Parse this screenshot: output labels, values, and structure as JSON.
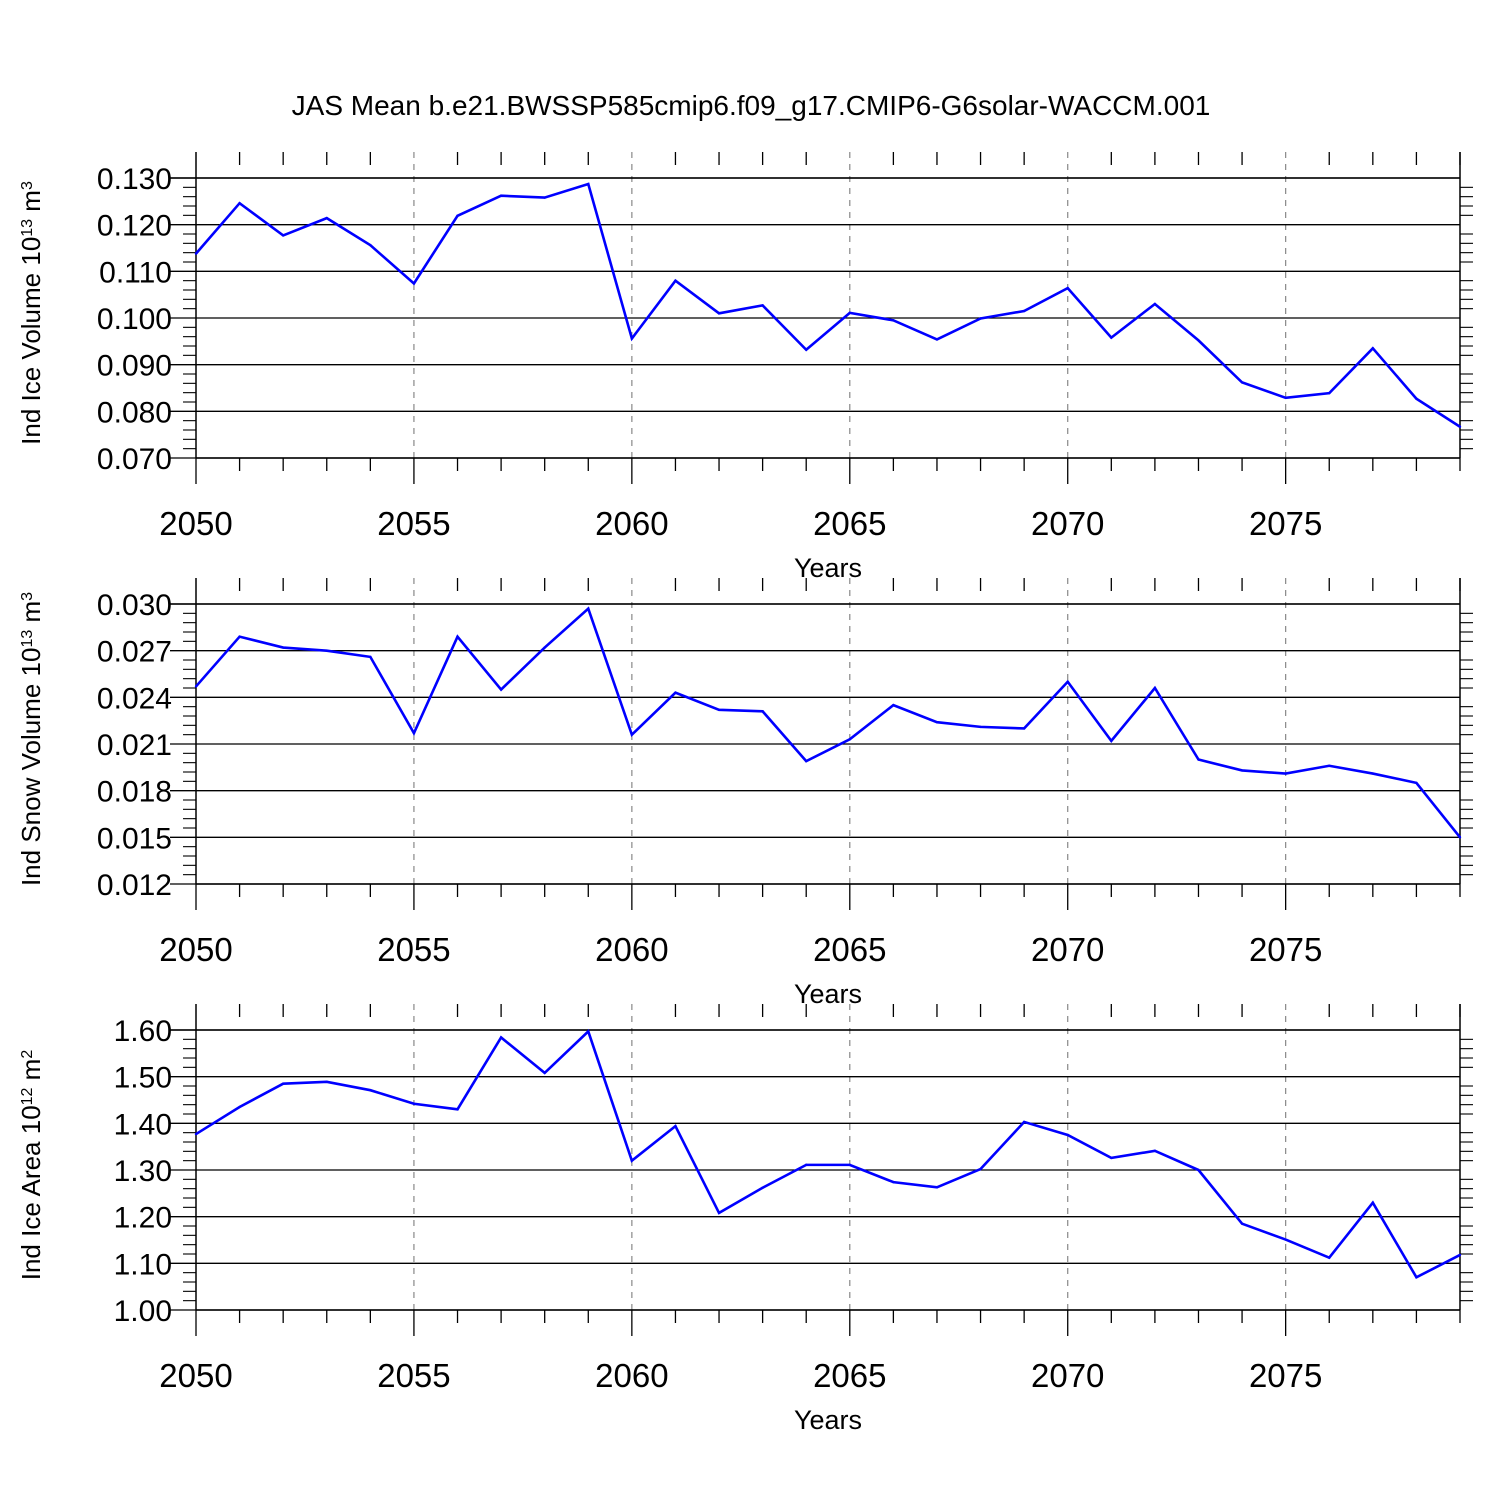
{
  "title": "JAS Mean b.e21.BWSSP585cmip6.f09_g17.CMIP6-G6solar-WACCM.001",
  "colors": {
    "line": "#0000ff",
    "axes": "#000000",
    "grid": "#888888",
    "background": "#ffffff"
  },
  "chart_data": [
    {
      "type": "line",
      "ylabel_base": "Ind Ice Volume 10",
      "ylabel_exp": "13",
      "ylabel_unit": " m",
      "ylabel_unit_exp": "3",
      "xlabel": "Years",
      "xlim": [
        2050,
        2079
      ],
      "ylim": [
        0.07,
        0.13
      ],
      "yticks": [
        "0.070",
        "0.080",
        "0.090",
        "0.100",
        "0.110",
        "0.120",
        "0.130"
      ],
      "xticks": [
        "2050",
        "2055",
        "2060",
        "2065",
        "2070",
        "2075"
      ],
      "x": [
        2050,
        2051,
        2052,
        2053,
        2054,
        2055,
        2056,
        2057,
        2058,
        2059,
        2060,
        2061,
        2062,
        2063,
        2064,
        2065,
        2066,
        2067,
        2068,
        2069,
        2070,
        2071,
        2072,
        2073,
        2074,
        2075,
        2076,
        2077,
        2078,
        2079
      ],
      "series": [
        {
          "values": [
            0.1138,
            0.1246,
            0.1177,
            0.1214,
            0.1156,
            0.1074,
            0.1219,
            0.1262,
            0.1258,
            0.1287,
            0.0956,
            0.108,
            0.101,
            0.1027,
            0.0932,
            0.1011,
            0.0995,
            0.0954,
            0.0999,
            0.1015,
            0.1064,
            0.0958,
            0.103,
            0.0952,
            0.0862,
            0.0829,
            0.0839,
            0.0935,
            0.0827,
            0.0767
          ]
        }
      ]
    },
    {
      "type": "line",
      "ylabel_base": "Ind Snow Volume 10",
      "ylabel_exp": "13",
      "ylabel_unit": " m",
      "ylabel_unit_exp": "3",
      "xlabel": "Years",
      "xlim": [
        2050,
        2079
      ],
      "ylim": [
        0.012,
        0.03
      ],
      "yticks": [
        "0.012",
        "0.015",
        "0.018",
        "0.021",
        "0.024",
        "0.027",
        "0.030"
      ],
      "xticks": [
        "2050",
        "2055",
        "2060",
        "2065",
        "2070",
        "2075"
      ],
      "x": [
        2050,
        2051,
        2052,
        2053,
        2054,
        2055,
        2056,
        2057,
        2058,
        2059,
        2060,
        2061,
        2062,
        2063,
        2064,
        2065,
        2066,
        2067,
        2068,
        2069,
        2070,
        2071,
        2072,
        2073,
        2074,
        2075,
        2076,
        2077,
        2078,
        2079
      ],
      "series": [
        {
          "values": [
            0.0247,
            0.0279,
            0.0272,
            0.027,
            0.0266,
            0.0217,
            0.0279,
            0.0245,
            0.0272,
            0.0297,
            0.0216,
            0.0243,
            0.0232,
            0.0231,
            0.0199,
            0.0213,
            0.0235,
            0.0224,
            0.0221,
            0.022,
            0.025,
            0.0212,
            0.0246,
            0.02,
            0.0193,
            0.0191,
            0.0196,
            0.0191,
            0.0185,
            0.015
          ]
        }
      ]
    },
    {
      "type": "line",
      "ylabel_base": "Ind Ice Area 10",
      "ylabel_exp": "12",
      "ylabel_unit": " m",
      "ylabel_unit_exp": "2",
      "xlabel": "Years",
      "xlim": [
        2050,
        2079
      ],
      "ylim": [
        1.0,
        1.6
      ],
      "yticks": [
        "1.00",
        "1.10",
        "1.20",
        "1.30",
        "1.40",
        "1.50",
        "1.60"
      ],
      "xticks": [
        "2050",
        "2055",
        "2060",
        "2065",
        "2070",
        "2075"
      ],
      "x": [
        2050,
        2051,
        2052,
        2053,
        2054,
        2055,
        2056,
        2057,
        2058,
        2059,
        2060,
        2061,
        2062,
        2063,
        2064,
        2065,
        2066,
        2067,
        2068,
        2069,
        2070,
        2071,
        2072,
        2073,
        2074,
        2075,
        2076,
        2077,
        2078,
        2079
      ],
      "series": [
        {
          "values": [
            1.377,
            1.435,
            1.485,
            1.489,
            1.471,
            1.442,
            1.43,
            1.584,
            1.508,
            1.597,
            1.32,
            1.394,
            1.208,
            1.262,
            1.311,
            1.311,
            1.274,
            1.263,
            1.302,
            1.403,
            1.375,
            1.326,
            1.341,
            1.3,
            1.185,
            1.151,
            1.112,
            1.23,
            1.07,
            1.118
          ]
        }
      ]
    }
  ]
}
